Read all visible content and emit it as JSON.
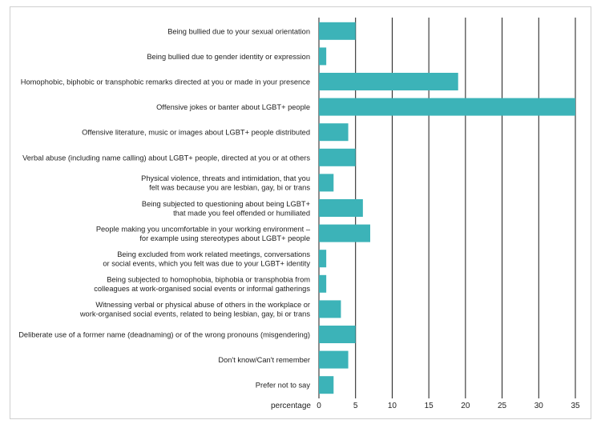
{
  "chart_data": {
    "type": "bar",
    "orientation": "horizontal",
    "categories": [
      "Being bullied due to your sexual orientation",
      "Being bullied due to gender identity or expression",
      "Homophobic, biphobic or transphobic remarks directed at you or made in your presence",
      "Offensive jokes or banter about LGBT+ people",
      "Offensive literature, music or images about LGBT+ people distributed",
      "Verbal abuse (including name calling) about LGBT+ people, directed at you or at others",
      "Physical violence, threats and intimidation, that you\nfelt was because you are lesbian, gay, bi or trans",
      "Being subjected to questioning about being LGBT+\nthat made you feel offended or humiliated",
      "People making you uncomfortable in your working environment –\nfor example using stereotypes about LGBT+ people",
      "Being excluded from work related meetings, conversations\nor social events, which you felt was due to your LGBT+ identity",
      "Being subjected to homophobia, biphobia or transphobia from\ncolleagues at work-organised social events or informal gatherings",
      "Witnessing verbal or physical abuse of others in the workplace or\nwork-organised social events, related to being lesbian, gay, bi or trans",
      "Deliberate use of a former name (deadnaming) or of the wrong pronouns (misgendering)",
      "Don't know/Can't remember",
      "Prefer not to say"
    ],
    "values": [
      5,
      1,
      19,
      35,
      4,
      5,
      2,
      6,
      7,
      1,
      1,
      3,
      5,
      4,
      2
    ],
    "xlim": [
      0,
      35
    ],
    "xticks": [
      "0",
      "5",
      "10",
      "15",
      "20",
      "25",
      "30",
      "35"
    ],
    "xlabel": "percentage",
    "ylabel": "",
    "title": "",
    "grid": "vertical",
    "legend": "none",
    "bar_color": "#3cb3b8",
    "grid_color": "#1a1a1a"
  }
}
